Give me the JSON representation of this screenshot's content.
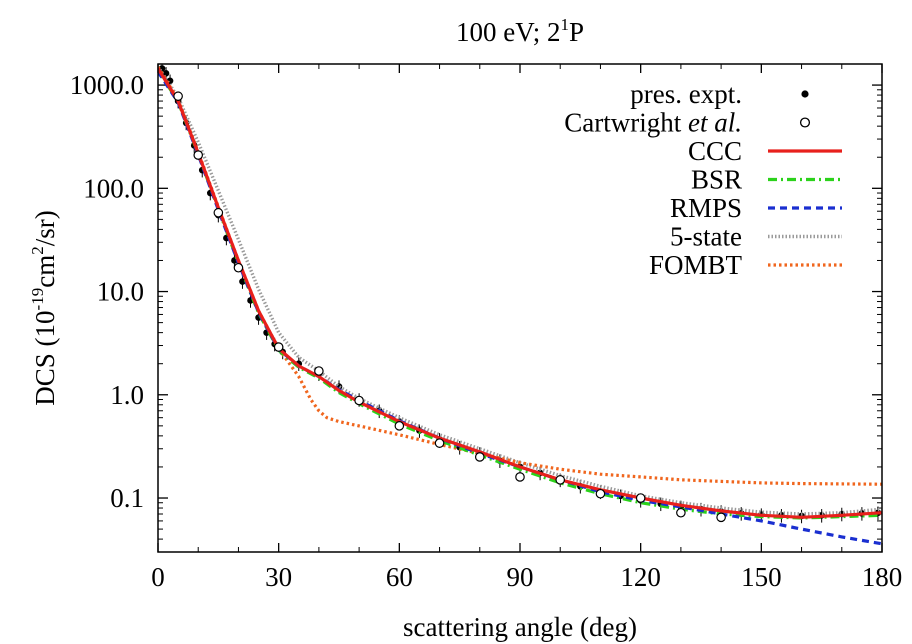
{
  "chart_data": {
    "type": "line",
    "title": {
      "main": "100 eV; 2",
      "sup": "1",
      "tail": "P"
    },
    "xlabel": "scattering angle (deg)",
    "ylabel": {
      "pre": "DCS (10",
      "sup1": "-19",
      "mid": "cm",
      "sup2": "2",
      "post": "/sr)"
    },
    "xlim": [
      0,
      180
    ],
    "ylim": [
      0.03,
      1600
    ],
    "yscale": "log",
    "grid": false,
    "legend_position": "top-right",
    "x_ticks": [
      0,
      30,
      60,
      90,
      120,
      150,
      180
    ],
    "x_tick_labels": [
      "0",
      "30",
      "60",
      "90",
      "120",
      "150",
      "180"
    ],
    "y_ticks": [
      0.1,
      1,
      10,
      100,
      1000
    ],
    "y_tick_labels": [
      "0.1",
      "1.0",
      "10.0",
      "100.0",
      "1000.0"
    ],
    "legend": [
      {
        "label": "pres. expt.",
        "style": "dot-filled",
        "color": "#000000"
      },
      {
        "label": "Cartwright",
        "label_italic": "et al.",
        "style": "dot-open",
        "color": "#000000"
      },
      {
        "label": "CCC",
        "style": "solid",
        "color": "#e8201c"
      },
      {
        "label": "BSR",
        "style": "dashdot",
        "color": "#2bd21b"
      },
      {
        "label": "RMPS",
        "style": "dash",
        "color": "#1a2fd0"
      },
      {
        "label": "5-state",
        "style": "dotted",
        "color": "#9a9a9a"
      },
      {
        "label": "FOMBT",
        "style": "dotted",
        "color": "#f0661e"
      }
    ],
    "series": [
      {
        "name": "CCC",
        "color": "#e8201c",
        "x": [
          0,
          5,
          10,
          15,
          20,
          25,
          30,
          35,
          40,
          45,
          50,
          60,
          70,
          80,
          90,
          100,
          110,
          120,
          130,
          140,
          150,
          160,
          170,
          180
        ],
        "y": [
          1450,
          700,
          220,
          65,
          20,
          6.5,
          2.8,
          1.9,
          1.5,
          1.1,
          0.85,
          0.55,
          0.38,
          0.28,
          0.2,
          0.15,
          0.12,
          0.1,
          0.085,
          0.075,
          0.068,
          0.065,
          0.068,
          0.072
        ]
      },
      {
        "name": "BSR",
        "color": "#2bd21b",
        "x": [
          0,
          5,
          10,
          15,
          20,
          25,
          30,
          35,
          40,
          45,
          50,
          60,
          70,
          80,
          90,
          100,
          110,
          120,
          130,
          140,
          150,
          160,
          170,
          180
        ],
        "y": [
          1400,
          690,
          215,
          63,
          19,
          6.2,
          2.7,
          1.85,
          1.45,
          1.05,
          0.82,
          0.52,
          0.36,
          0.26,
          0.19,
          0.14,
          0.11,
          0.09,
          0.078,
          0.07,
          0.066,
          0.064,
          0.066,
          0.068
        ]
      },
      {
        "name": "RMPS",
        "color": "#1a2fd0",
        "x": [
          0,
          5,
          10,
          15,
          20,
          25,
          30,
          35,
          40,
          45,
          50,
          60,
          70,
          80,
          90,
          100,
          110,
          120,
          130,
          140,
          150,
          160,
          170,
          180
        ],
        "y": [
          1350,
          680,
          212,
          62,
          19,
          6.3,
          2.75,
          1.9,
          1.5,
          1.12,
          0.88,
          0.56,
          0.38,
          0.27,
          0.2,
          0.15,
          0.115,
          0.095,
          0.082,
          0.07,
          0.06,
          0.05,
          0.042,
          0.036
        ]
      },
      {
        "name": "5-state",
        "color": "#9a9a9a",
        "x": [
          0,
          5,
          10,
          15,
          20,
          25,
          30,
          35,
          40,
          45,
          50,
          60,
          70,
          80,
          90,
          100,
          110,
          120,
          130,
          140,
          150,
          160,
          170,
          180
        ],
        "y": [
          1500,
          760,
          280,
          95,
          32,
          10.5,
          4.0,
          2.3,
          1.7,
          1.2,
          0.92,
          0.6,
          0.41,
          0.3,
          0.22,
          0.165,
          0.13,
          0.105,
          0.09,
          0.08,
          0.073,
          0.07,
          0.072,
          0.078
        ]
      },
      {
        "name": "FOMBT",
        "color": "#f0661e",
        "x": [
          0,
          5,
          10,
          15,
          20,
          25,
          30,
          35,
          38,
          40,
          42,
          45,
          50,
          60,
          70,
          80,
          90,
          100,
          110,
          120,
          130,
          140,
          150,
          160,
          170,
          180
        ],
        "y": [
          1500,
          720,
          225,
          66,
          20,
          6.5,
          2.8,
          1.5,
          0.9,
          0.7,
          0.6,
          0.55,
          0.5,
          0.41,
          0.33,
          0.27,
          0.22,
          0.19,
          0.17,
          0.16,
          0.15,
          0.145,
          0.14,
          0.138,
          0.137,
          0.136
        ]
      },
      {
        "name": "pres. expt.",
        "color": "#000000",
        "x": [
          1,
          2,
          3,
          5,
          7,
          9,
          11,
          13,
          15,
          17,
          19,
          21,
          23,
          25,
          27,
          29,
          31,
          35,
          40,
          45,
          50,
          55,
          60,
          65,
          70,
          75,
          80,
          85,
          90,
          95,
          100,
          105,
          110,
          115,
          120,
          125,
          130,
          135,
          140,
          145,
          150,
          155,
          160,
          165,
          170,
          175,
          179
        ],
        "y": [
          1450,
          1300,
          1100,
          700,
          430,
          260,
          150,
          90,
          55,
          33,
          20,
          12.5,
          8.2,
          5.6,
          4.0,
          3.1,
          2.6,
          2.0,
          1.6,
          1.2,
          0.9,
          0.7,
          0.55,
          0.45,
          0.37,
          0.31,
          0.27,
          0.23,
          0.2,
          0.175,
          0.15,
          0.13,
          0.115,
          0.105,
          0.095,
          0.088,
          0.082,
          0.078,
          0.074,
          0.071,
          0.069,
          0.068,
          0.067,
          0.068,
          0.07,
          0.071,
          0.072
        ]
      },
      {
        "name": "Cartwright et al.",
        "color": "#000000",
        "x": [
          5,
          10,
          15,
          20,
          30,
          40,
          50,
          60,
          70,
          80,
          90,
          100,
          110,
          120,
          130,
          140
        ],
        "y": [
          780,
          210,
          58,
          17,
          2.9,
          1.7,
          0.88,
          0.5,
          0.34,
          0.25,
          0.16,
          0.15,
          0.11,
          0.1,
          0.072,
          0.065
        ]
      }
    ]
  }
}
